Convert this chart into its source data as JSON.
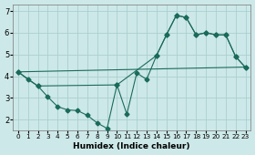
{
  "bg_color": "#cde8e8",
  "grid_color": "#aacfcf",
  "line_color": "#1a6b5a",
  "xlabel": "Humidex (Indice chaleur)",
  "xlim": [
    -0.5,
    23.5
  ],
  "ylim": [
    1.5,
    7.3
  ],
  "yticks": [
    2,
    3,
    4,
    5,
    6,
    7
  ],
  "xticks": [
    0,
    1,
    2,
    3,
    4,
    5,
    6,
    7,
    8,
    9,
    10,
    11,
    12,
    13,
    14,
    15,
    16,
    17,
    18,
    19,
    20,
    21,
    22,
    23
  ],
  "line1_x": [
    0,
    1,
    2,
    3,
    4,
    5,
    6,
    7,
    8,
    9,
    10,
    11,
    12,
    13,
    14,
    15,
    16,
    17,
    18,
    19,
    20,
    21,
    22,
    23
  ],
  "line1_y": [
    4.2,
    3.85,
    3.55,
    3.05,
    2.6,
    2.45,
    2.42,
    2.2,
    1.85,
    1.6,
    3.6,
    2.25,
    4.15,
    3.85,
    4.95,
    5.9,
    6.8,
    6.7,
    5.9,
    6.0,
    5.9,
    5.9,
    4.9,
    4.4
  ],
  "line2_x": [
    0,
    23
  ],
  "line2_y": [
    4.2,
    4.42
  ],
  "line3_x": [
    0,
    2,
    10,
    14,
    15,
    16,
    17,
    18,
    19,
    20,
    21,
    22,
    23
  ],
  "line3_y": [
    4.2,
    3.55,
    3.6,
    4.95,
    5.9,
    6.8,
    6.7,
    5.9,
    6.0,
    5.9,
    5.9,
    4.9,
    4.4
  ],
  "marker": "D",
  "marker_size": 2.5,
  "linewidth": 0.8,
  "tick_fontsize_x": 5.2,
  "tick_fontsize_y": 6.0,
  "xlabel_fontsize": 6.5
}
